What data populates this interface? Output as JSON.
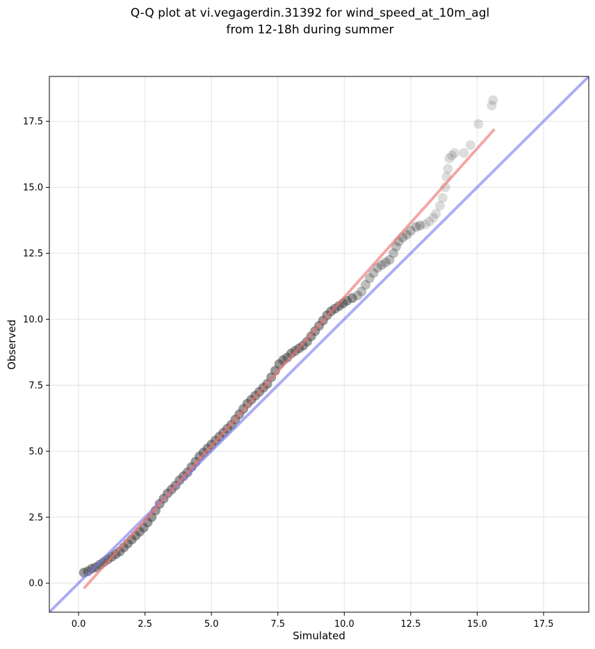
{
  "chart_data": {
    "type": "scatter",
    "title": "Q-Q plot at vi.vegagerdin.31392 for wind_speed_at_10m_agl\nfrom 12-18h during summer",
    "title_lines": [
      "Q-Q plot at vi.vegagerdin.31392 for wind_speed_at_10m_agl",
      "from 12-18h during summer"
    ],
    "xlabel": "Simulated",
    "ylabel": "Observed",
    "xlim": [
      -1.1,
      19.2
    ],
    "ylim": [
      -1.1,
      19.2
    ],
    "xticks": [
      0.0,
      2.5,
      5.0,
      7.5,
      10.0,
      12.5,
      15.0,
      17.5
    ],
    "yticks": [
      0.0,
      2.5,
      5.0,
      7.5,
      10.0,
      12.5,
      15.0,
      17.5
    ],
    "xtick_labels": [
      "0.0",
      "2.5",
      "5.0",
      "7.5",
      "10.0",
      "12.5",
      "15.0",
      "17.5"
    ],
    "ytick_labels": [
      "0.0",
      "2.5",
      "5.0",
      "7.5",
      "10.0",
      "12.5",
      "15.0",
      "17.5"
    ],
    "grid": true,
    "series": [
      {
        "kind": "reference-line",
        "color": "#7777ee",
        "x": [
          -1.1,
          19.2
        ],
        "y": [
          -1.1,
          19.2
        ]
      },
      {
        "kind": "fit-line",
        "color": "#ee7777",
        "x": [
          0.2,
          15.65
        ],
        "y": [
          -0.2,
          17.2
        ]
      },
      {
        "kind": "quantiles",
        "color": "#444444",
        "points": [
          [
            0.2,
            0.4
          ],
          [
            0.35,
            0.45
          ],
          [
            0.5,
            0.55
          ],
          [
            0.65,
            0.6
          ],
          [
            0.8,
            0.7
          ],
          [
            0.95,
            0.8
          ],
          [
            1.1,
            0.9
          ],
          [
            1.25,
            1.0
          ],
          [
            1.4,
            1.1
          ],
          [
            1.55,
            1.2
          ],
          [
            1.7,
            1.35
          ],
          [
            1.85,
            1.5
          ],
          [
            2.0,
            1.65
          ],
          [
            2.15,
            1.8
          ],
          [
            2.3,
            1.95
          ],
          [
            2.45,
            2.1
          ],
          [
            2.6,
            2.3
          ],
          [
            2.75,
            2.5
          ],
          [
            2.9,
            2.75
          ],
          [
            3.05,
            3.0
          ],
          [
            3.2,
            3.2
          ],
          [
            3.35,
            3.4
          ],
          [
            3.5,
            3.55
          ],
          [
            3.65,
            3.7
          ],
          [
            3.8,
            3.9
          ],
          [
            3.95,
            4.05
          ],
          [
            4.1,
            4.2
          ],
          [
            4.25,
            4.4
          ],
          [
            4.4,
            4.6
          ],
          [
            4.55,
            4.8
          ],
          [
            4.7,
            4.95
          ],
          [
            4.85,
            5.1
          ],
          [
            5.0,
            5.25
          ],
          [
            5.15,
            5.4
          ],
          [
            5.3,
            5.55
          ],
          [
            5.45,
            5.7
          ],
          [
            5.6,
            5.85
          ],
          [
            5.75,
            6.0
          ],
          [
            5.9,
            6.2
          ],
          [
            6.05,
            6.4
          ],
          [
            6.2,
            6.6
          ],
          [
            6.35,
            6.8
          ],
          [
            6.5,
            6.95
          ],
          [
            6.65,
            7.1
          ],
          [
            6.8,
            7.25
          ],
          [
            6.95,
            7.4
          ],
          [
            7.1,
            7.55
          ],
          [
            7.25,
            7.8
          ],
          [
            7.4,
            8.05
          ],
          [
            7.55,
            8.3
          ],
          [
            7.7,
            8.45
          ],
          [
            7.85,
            8.55
          ],
          [
            8.0,
            8.7
          ],
          [
            8.15,
            8.8
          ],
          [
            8.3,
            8.9
          ],
          [
            8.45,
            9.0
          ],
          [
            8.6,
            9.15
          ],
          [
            8.75,
            9.35
          ],
          [
            8.9,
            9.55
          ],
          [
            9.05,
            9.75
          ],
          [
            9.2,
            9.95
          ],
          [
            9.35,
            10.15
          ],
          [
            9.5,
            10.3
          ],
          [
            9.65,
            10.4
          ],
          [
            9.8,
            10.5
          ],
          [
            9.95,
            10.6
          ],
          [
            10.1,
            10.7
          ],
          [
            10.3,
            10.8
          ],
          [
            10.5,
            10.9
          ],
          [
            10.65,
            11.05
          ],
          [
            10.8,
            11.3
          ],
          [
            10.95,
            11.55
          ],
          [
            11.1,
            11.75
          ],
          [
            11.25,
            11.95
          ],
          [
            11.4,
            12.05
          ],
          [
            11.55,
            12.15
          ],
          [
            11.7,
            12.25
          ],
          [
            11.85,
            12.5
          ],
          [
            11.95,
            12.75
          ],
          [
            12.05,
            12.95
          ],
          [
            12.2,
            13.1
          ],
          [
            12.35,
            13.2
          ],
          [
            12.5,
            13.35
          ],
          [
            12.7,
            13.5
          ],
          [
            12.85,
            13.55
          ],
          [
            13.05,
            13.6
          ],
          [
            13.2,
            13.7
          ],
          [
            13.35,
            13.85
          ],
          [
            13.45,
            14.0
          ],
          [
            13.6,
            14.3
          ],
          [
            13.7,
            14.6
          ],
          [
            13.8,
            15.0
          ],
          [
            13.85,
            15.4
          ],
          [
            13.9,
            15.7
          ],
          [
            13.95,
            16.1
          ],
          [
            14.05,
            16.2
          ],
          [
            14.15,
            16.3
          ],
          [
            14.5,
            16.3
          ],
          [
            14.75,
            16.6
          ],
          [
            15.05,
            17.4
          ],
          [
            15.55,
            18.1
          ],
          [
            15.6,
            18.3
          ]
        ]
      }
    ]
  }
}
